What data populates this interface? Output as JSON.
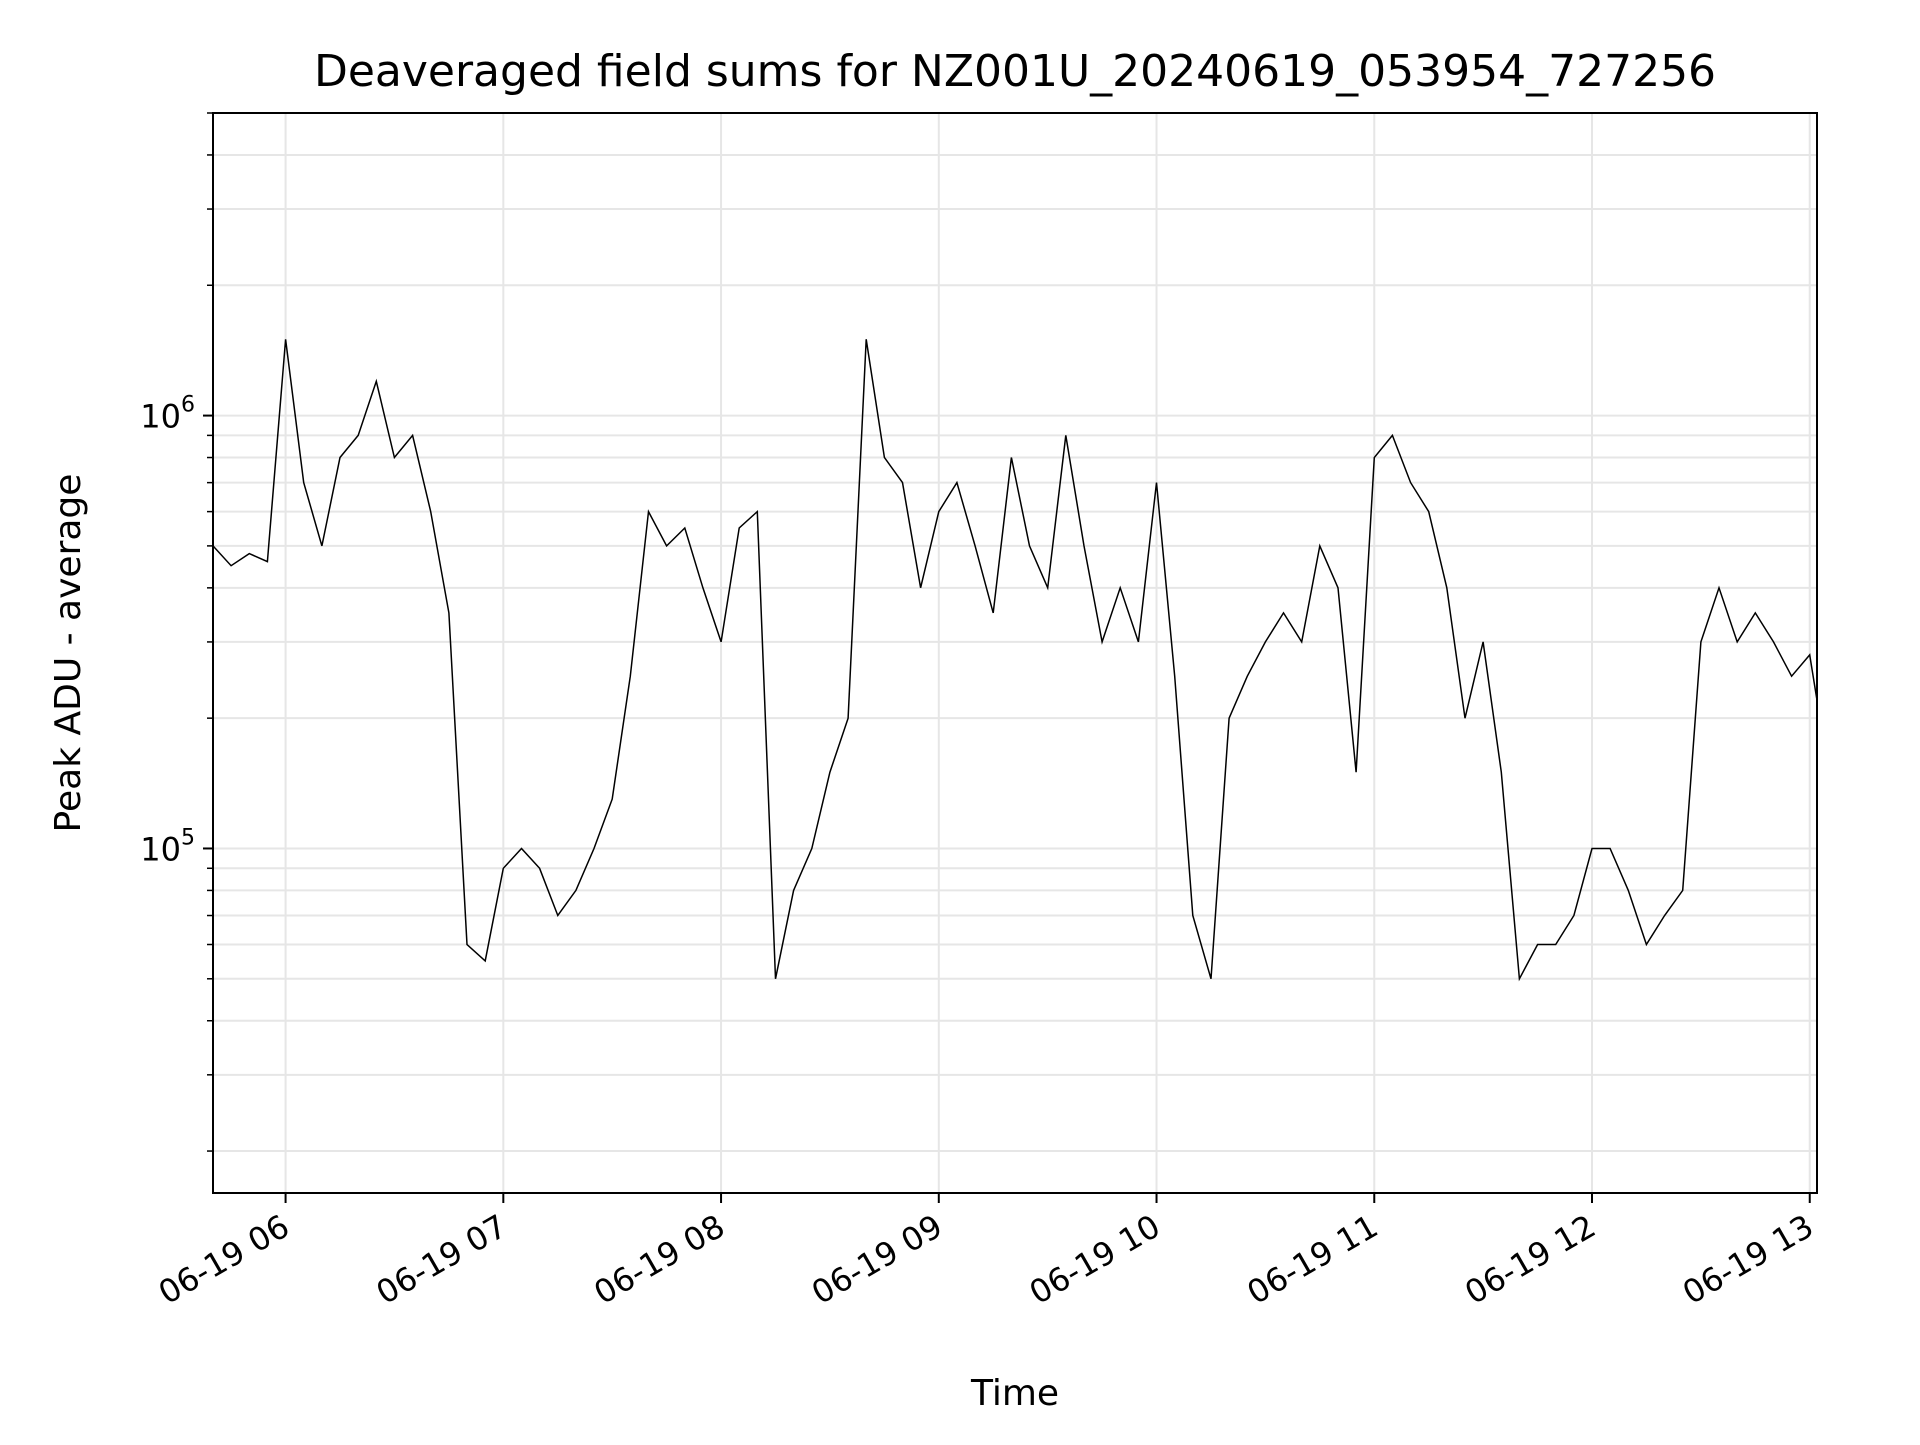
{
  "chart_data": {
    "type": "line",
    "title": "Deaveraged field sums for NZ001U_20240619_053954_727256",
    "xlabel": "Time",
    "ylabel": "Peak ADU - average",
    "y_scale": "log",
    "x_range": [
      "2024-06-19 05:40",
      "2024-06-19 13:02"
    ],
    "ylim": [
      16000,
      5000000
    ],
    "grid": true,
    "x_ticks": [
      {
        "time": "2024-06-19 06:00",
        "label": "06-19 06"
      },
      {
        "time": "2024-06-19 07:00",
        "label": "06-19 07"
      },
      {
        "time": "2024-06-19 08:00",
        "label": "06-19 08"
      },
      {
        "time": "2024-06-19 09:00",
        "label": "06-19 09"
      },
      {
        "time": "2024-06-19 10:00",
        "label": "06-19 10"
      },
      {
        "time": "2024-06-19 11:00",
        "label": "06-19 11"
      },
      {
        "time": "2024-06-19 12:00",
        "label": "06-19 12"
      },
      {
        "time": "2024-06-19 13:00",
        "label": "06-19 13"
      }
    ],
    "y_ticks": [
      {
        "value": 100000,
        "base": "10",
        "exp": "5"
      },
      {
        "value": 1000000,
        "base": "10",
        "exp": "6"
      }
    ],
    "line_color": "#000000",
    "grid_color": "#e6e6e6",
    "series": [
      {
        "x": [
          "2024-06-19 05:40",
          "2024-06-19 05:45",
          "2024-06-19 05:50",
          "2024-06-19 05:55",
          "2024-06-19 06:00",
          "2024-06-19 06:05",
          "2024-06-19 06:10",
          "2024-06-19 06:15",
          "2024-06-19 06:20",
          "2024-06-19 06:25",
          "2024-06-19 06:30",
          "2024-06-19 06:35",
          "2024-06-19 06:40",
          "2024-06-19 06:45",
          "2024-06-19 06:50",
          "2024-06-19 06:55",
          "2024-06-19 07:00",
          "2024-06-19 07:05",
          "2024-06-19 07:10",
          "2024-06-19 07:15",
          "2024-06-19 07:20",
          "2024-06-19 07:25",
          "2024-06-19 07:30",
          "2024-06-19 07:35",
          "2024-06-19 07:40",
          "2024-06-19 07:45",
          "2024-06-19 07:50",
          "2024-06-19 07:55",
          "2024-06-19 08:00",
          "2024-06-19 08:05",
          "2024-06-19 08:10",
          "2024-06-19 08:15",
          "2024-06-19 08:20",
          "2024-06-19 08:25",
          "2024-06-19 08:30",
          "2024-06-19 08:35",
          "2024-06-19 08:40",
          "2024-06-19 08:45",
          "2024-06-19 08:50",
          "2024-06-19 08:55",
          "2024-06-19 09:00",
          "2024-06-19 09:05",
          "2024-06-19 09:10",
          "2024-06-19 09:15",
          "2024-06-19 09:20",
          "2024-06-19 09:25",
          "2024-06-19 09:30",
          "2024-06-19 09:35",
          "2024-06-19 09:40",
          "2024-06-19 09:45",
          "2024-06-19 09:50",
          "2024-06-19 09:55",
          "2024-06-19 10:00",
          "2024-06-19 10:05",
          "2024-06-19 10:10",
          "2024-06-19 10:15",
          "2024-06-19 10:20",
          "2024-06-19 10:25",
          "2024-06-19 10:30",
          "2024-06-19 10:35",
          "2024-06-19 10:40",
          "2024-06-19 10:45",
          "2024-06-19 10:50",
          "2024-06-19 10:55",
          "2024-06-19 11:00",
          "2024-06-19 11:05",
          "2024-06-19 11:10",
          "2024-06-19 11:15",
          "2024-06-19 11:20",
          "2024-06-19 11:25",
          "2024-06-19 11:30",
          "2024-06-19 11:35",
          "2024-06-19 11:40",
          "2024-06-19 11:45",
          "2024-06-19 11:50",
          "2024-06-19 11:55",
          "2024-06-19 12:00",
          "2024-06-19 12:05",
          "2024-06-19 12:10",
          "2024-06-19 12:15",
          "2024-06-19 12:20",
          "2024-06-19 12:25",
          "2024-06-19 12:30",
          "2024-06-19 12:35",
          "2024-06-19 12:40",
          "2024-06-19 12:45",
          "2024-06-19 12:50",
          "2024-06-19 12:55",
          "2024-06-19 13:00",
          "2024-06-19 13:02"
        ],
        "values": [
          500000,
          450000,
          480000,
          460000,
          1500000,
          700000,
          500000,
          800000,
          900000,
          1200000,
          800000,
          900000,
          600000,
          350000,
          60000,
          55000,
          90000,
          100000,
          90000,
          70000,
          80000,
          100000,
          130000,
          250000,
          600000,
          500000,
          550000,
          400000,
          300000,
          550000,
          600000,
          50000,
          80000,
          100000,
          150000,
          200000,
          1500000,
          800000,
          700000,
          400000,
          600000,
          700000,
          500000,
          350000,
          800000,
          500000,
          400000,
          900000,
          500000,
          300000,
          400000,
          300000,
          700000,
          250000,
          70000,
          50000,
          200000,
          250000,
          300000,
          350000,
          300000,
          500000,
          400000,
          150000,
          800000,
          900000,
          700000,
          600000,
          400000,
          200000,
          300000,
          150000,
          50000,
          60000,
          60000,
          70000,
          100000,
          100000,
          80000,
          60000,
          70000,
          80000,
          300000,
          400000,
          300000,
          350000,
          300000,
          250000,
          280000,
          220000
        ]
      }
    ]
  }
}
